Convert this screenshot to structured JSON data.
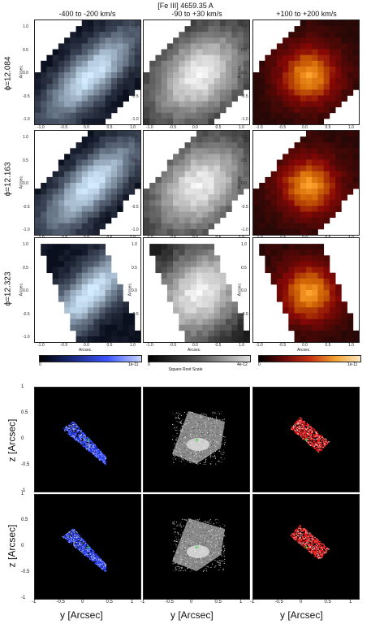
{
  "header": {
    "title": "[Fe III] 4659.35 A",
    "col_left": "-400 to -200 km/s",
    "col_mid": "-90 to +30 km/s",
    "col_right": "+100 to +200 km/s"
  },
  "rows": [
    {
      "phi": "ϕ=12.084"
    },
    {
      "phi": "ϕ=12.163"
    },
    {
      "phi": "ϕ=12.323"
    }
  ],
  "axis": {
    "arcsec": "Arcsec.",
    "ticks": [
      "1.0",
      "0.5",
      "0.0",
      "-0.5",
      "-1.0"
    ],
    "xticks": [
      "-1.0",
      "-0.5",
      "0.0",
      "0.5",
      "1.0"
    ]
  },
  "colorbars": {
    "blue": {
      "min": "0",
      "max": "1e-11"
    },
    "gray": {
      "min": "0",
      "max": "4e-12"
    },
    "red": {
      "min": "0",
      "max": "1e-11"
    },
    "caption": "Square Root Scale"
  },
  "sim": {
    "zlabel": "z [Arcsec]",
    "ylabel": "y [Arcsec]",
    "zticks": [
      "1",
      "0.5",
      "0",
      "-0.5",
      "-1"
    ],
    "yticks": [
      "-1",
      "-0.5",
      "0",
      "0.5",
      "1"
    ]
  },
  "colors": {
    "blue": "#3a55ff",
    "red": "#e02020",
    "orange": "#f0a030"
  }
}
